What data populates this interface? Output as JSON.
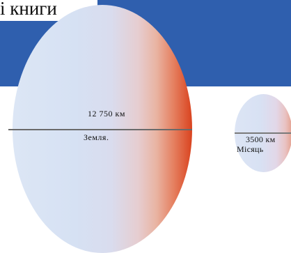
{
  "heading": {
    "text": "і книги"
  },
  "earth": {
    "diameter_label": "12 750 км",
    "name": "Земля."
  },
  "moon": {
    "diameter_label": "3500 км",
    "name": "Місяць"
  },
  "colors": {
    "header_band": "#2f5fae",
    "background": "#ffffff",
    "sphere_light": "#dce6f5",
    "sphere_shadow": "#d9431f"
  }
}
